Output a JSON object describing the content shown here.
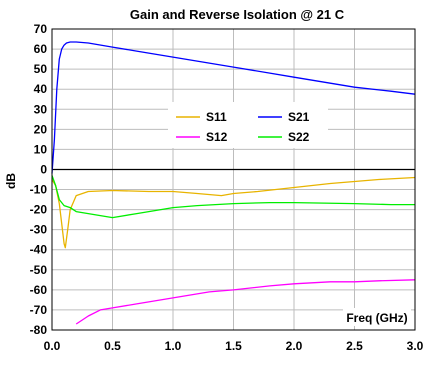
{
  "chart_data": {
    "type": "line",
    "title": "Gain and Reverse Isolation @ 21 C",
    "xlabel": "Freq (GHz)",
    "ylabel": "dB",
    "xlim": [
      0,
      3
    ],
    "ylim": [
      -80,
      70
    ],
    "x_ticks": [
      0,
      0.5,
      1,
      1.5,
      2,
      2.5,
      3
    ],
    "x_tick_labels": [
      "0.0",
      "0.5",
      "1.0",
      "1.5",
      "2.0",
      "2.5",
      "3.0"
    ],
    "y_ticks": [
      -80,
      -70,
      -60,
      -50,
      -40,
      -30,
      -20,
      -10,
      0,
      10,
      20,
      30,
      40,
      50,
      60,
      70
    ],
    "y_tick_labels": [
      "-80",
      "-70",
      "-60",
      "-50",
      "-40",
      "-30",
      "-20",
      "-10",
      "0",
      "10",
      "20",
      "30",
      "40",
      "50",
      "60",
      "70"
    ],
    "grid": true,
    "legend_position": "center",
    "series": [
      {
        "name": "S11",
        "color": "#e8b400",
        "x": [
          0.0,
          0.03,
          0.06,
          0.08,
          0.1,
          0.11,
          0.13,
          0.15,
          0.2,
          0.3,
          0.5,
          0.8,
          1.0,
          1.2,
          1.4,
          1.5,
          1.7,
          2.0,
          2.3,
          2.5,
          2.7,
          3.0
        ],
        "y": [
          -5,
          -8,
          -17,
          -27,
          -37,
          -39,
          -30,
          -20,
          -13,
          -11,
          -10.5,
          -11,
          -11,
          -12,
          -13,
          -12,
          -11,
          -9,
          -7,
          -6,
          -5,
          -4
        ]
      },
      {
        "name": "S12",
        "color": "#ff00ff",
        "x": [
          0.2,
          0.25,
          0.3,
          0.4,
          0.5,
          0.7,
          1.0,
          1.3,
          1.5,
          1.8,
          2.0,
          2.3,
          2.5,
          2.7,
          3.0
        ],
        "y": [
          -77,
          -75,
          -73,
          -70,
          -69,
          -67,
          -64,
          -61,
          -60,
          -58,
          -57,
          -56,
          -56,
          -55.5,
          -55
        ]
      },
      {
        "name": "S21",
        "color": "#0000ff",
        "x": [
          0.0,
          0.02,
          0.04,
          0.06,
          0.08,
          0.1,
          0.12,
          0.15,
          0.2,
          0.3,
          0.5,
          0.7,
          1.0,
          1.2,
          1.5,
          1.8,
          2.0,
          2.3,
          2.5,
          2.8,
          3.0
        ],
        "y": [
          -2,
          15,
          40,
          55,
          60,
          62,
          63,
          63.5,
          63.5,
          63,
          61,
          59,
          56,
          54,
          51,
          48,
          46,
          43,
          41,
          39,
          37.5
        ]
      },
      {
        "name": "S22",
        "color": "#00ee00",
        "x": [
          0.0,
          0.03,
          0.06,
          0.1,
          0.15,
          0.2,
          0.3,
          0.4,
          0.5,
          0.7,
          0.9,
          1.0,
          1.2,
          1.5,
          1.8,
          2.0,
          2.5,
          2.8,
          3.0
        ],
        "y": [
          -3,
          -8,
          -15,
          -18,
          -19,
          -21,
          -22,
          -23,
          -24,
          -22,
          -20,
          -19,
          -18,
          -17,
          -16.5,
          -16.5,
          -17,
          -17.5,
          -17.5
        ]
      }
    ]
  }
}
